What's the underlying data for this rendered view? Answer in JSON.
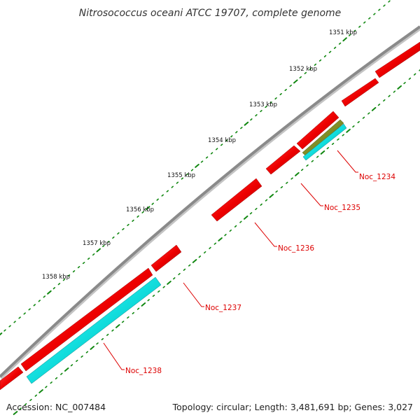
{
  "title": "Nitrosococcus oceani ATCC 19707, complete genome",
  "accession_text": "Accession: NC_007484",
  "topology_text": "Topology: circular; Length: 3,481,691 bp; Genes: 3,027",
  "colors": {
    "backbone": "#8a8a8a",
    "gene_red": "#ee0000",
    "gene_cyan": "#11dddd",
    "gene_olive": "#7c8a1e",
    "tick_green": "#118811",
    "label_red": "#dd0000"
  },
  "kbp_labels": [
    "1351 kbp",
    "1352 kbp",
    "1353 kbp",
    "1354 kbp",
    "1355 kbp",
    "1356 kbp",
    "1357 kbp",
    "1358 kbp"
  ],
  "gene_labels": [
    "Noc_1234",
    "Noc_1235",
    "Noc_1236",
    "Noc_1237",
    "Noc_1238"
  ]
}
